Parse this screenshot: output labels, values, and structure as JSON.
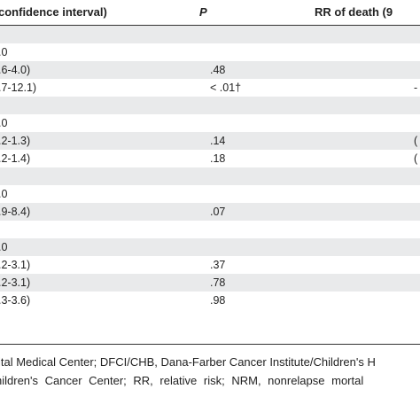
{
  "table": {
    "headers": {
      "ci": "confidence interval)",
      "p": "P",
      "rr": "RR of death (9"
    },
    "rows": [
      {
        "ci": "",
        "p": "",
        "rr": "",
        "shaded": true
      },
      {
        "ci": ".0",
        "p": "",
        "rr": "",
        "shaded": false
      },
      {
        "ci": ".6-4.0)",
        "p": ".48",
        "rr": "",
        "shaded": true
      },
      {
        "ci": ".7-12.1)",
        "p": "< .01†",
        "rr": "-",
        "shaded": false
      },
      {
        "ci": "",
        "p": "",
        "rr": "",
        "shaded": true
      },
      {
        "ci": ".0",
        "p": "",
        "rr": "",
        "shaded": false
      },
      {
        "ci": ".2-1.3)",
        "p": ".14",
        "rr": "(",
        "shaded": true
      },
      {
        "ci": ".2-1.4)",
        "p": ".18",
        "rr": "(",
        "shaded": false
      },
      {
        "ci": "",
        "p": "",
        "rr": "",
        "shaded": true
      },
      {
        "ci": ".0",
        "p": "",
        "rr": "",
        "shaded": false
      },
      {
        "ci": ".9-8.4)",
        "p": ".07",
        "rr": "",
        "shaded": true
      },
      {
        "ci": "",
        "p": "",
        "rr": "",
        "shaded": false
      },
      {
        "ci": ".0",
        "p": "",
        "rr": "",
        "shaded": true
      },
      {
        "ci": ".2-3.1)",
        "p": ".37",
        "rr": "",
        "shaded": false
      },
      {
        "ci": ".2-3.1)",
        "p": ".78",
        "rr": "",
        "shaded": true
      },
      {
        "ci": ".3-3.6)",
        "p": ".98",
        "rr": "",
        "shaded": false
      }
    ]
  },
  "footnotes": {
    "line1": "ital Medical Center; DFCI/CHB, Dana-Farber Cancer Institute/Children's H",
    "line2": "hildren's Cancer Center; RR, relative risk; NRM, nonrelapse mortal"
  }
}
